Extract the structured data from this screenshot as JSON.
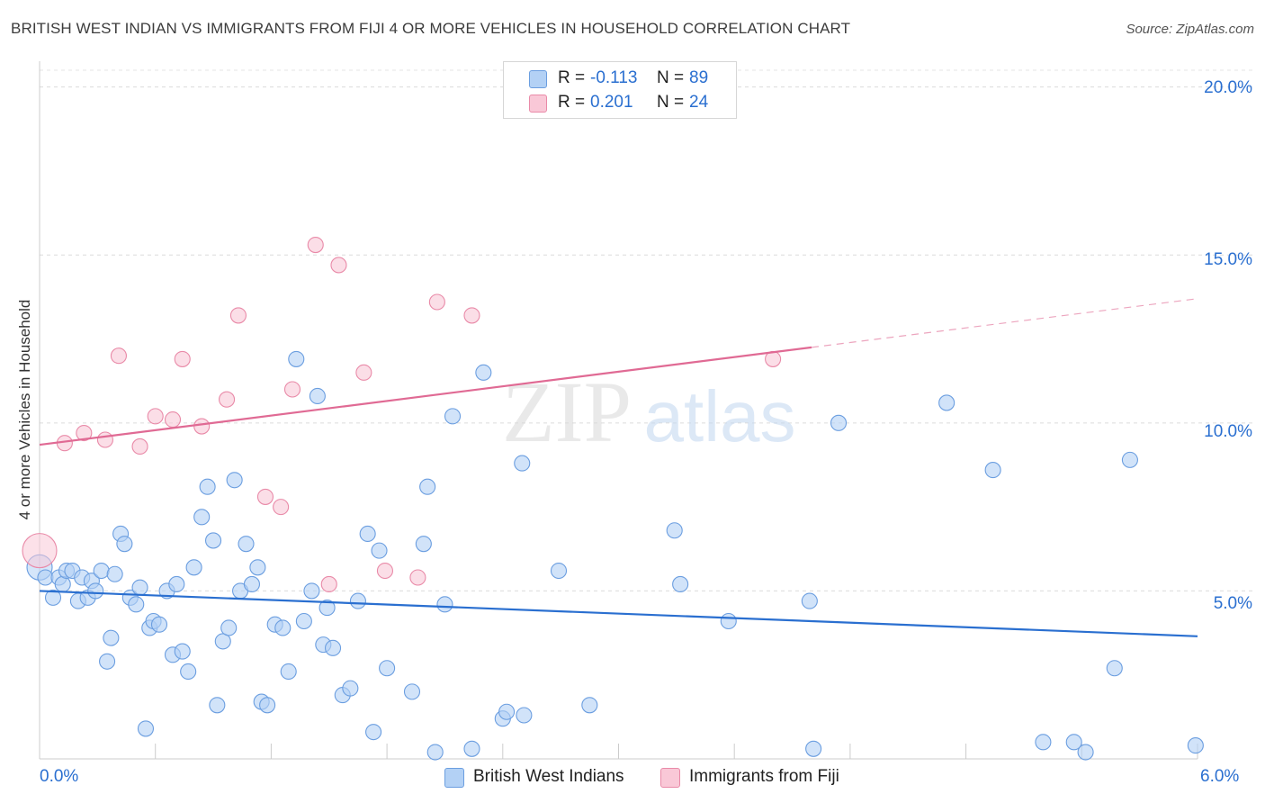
{
  "title": "BRITISH WEST INDIAN VS IMMIGRANTS FROM FIJI 4 OR MORE VEHICLES IN HOUSEHOLD CORRELATION CHART",
  "source": "Source: ZipAtlas.com",
  "watermark": {
    "zip": "ZIP",
    "atlas": "atlas"
  },
  "legend": [
    {
      "r_label": "R =",
      "r_value": "-0.113",
      "n_label": "N =",
      "n_value": "89",
      "color": "#b3d1f5",
      "border": "#6b9ee0"
    },
    {
      "r_label": "R =",
      "r_value": "0.201",
      "n_label": "N =",
      "n_value": "24",
      "color": "#f9c8d7",
      "border": "#e98aa8"
    }
  ],
  "bottom_legend": [
    {
      "label": "British West Indians",
      "color": "#b3d1f5",
      "border": "#6b9ee0"
    },
    {
      "label": "Immigrants from Fiji",
      "color": "#f9c8d7",
      "border": "#e98aa8"
    }
  ],
  "x_tick_labels": [
    "0.0%",
    "6.0%"
  ],
  "y_tick_labels": [
    "20.0%",
    "15.0%",
    "10.0%",
    "5.0%"
  ],
  "chart_data": {
    "type": "scatter",
    "title": "BRITISH WEST INDIAN VS IMMIGRANTS FROM FIJI 4 OR MORE VEHICLES IN HOUSEHOLD CORRELATION CHART",
    "xlabel": "",
    "ylabel": "4 or more Vehicles in Household",
    "xlim": [
      0,
      6.0
    ],
    "ylim": [
      0,
      20.5
    ],
    "y_ticks": [
      5,
      10,
      15,
      20
    ],
    "grid": true,
    "legend_position": "top-center",
    "series": [
      {
        "name": "British West Indians",
        "color": "#6b9ee0",
        "fill": "#b3d1f5",
        "trend": {
          "x0": 0,
          "y0": 5.0,
          "x1": 6.0,
          "y1": 3.65,
          "color": "#2a6fd0"
        },
        "points": [
          [
            0.0,
            5.7
          ],
          [
            0.03,
            5.4
          ],
          [
            0.07,
            4.8
          ],
          [
            0.1,
            5.4
          ],
          [
            0.12,
            5.2
          ],
          [
            0.14,
            5.6
          ],
          [
            0.17,
            5.6
          ],
          [
            0.2,
            4.7
          ],
          [
            0.22,
            5.4
          ],
          [
            0.25,
            4.8
          ],
          [
            0.27,
            5.3
          ],
          [
            0.29,
            5.0
          ],
          [
            0.32,
            5.6
          ],
          [
            0.35,
            2.9
          ],
          [
            0.37,
            3.6
          ],
          [
            0.39,
            5.5
          ],
          [
            0.42,
            6.7
          ],
          [
            0.44,
            6.4
          ],
          [
            0.47,
            4.8
          ],
          [
            0.5,
            4.6
          ],
          [
            0.52,
            5.1
          ],
          [
            0.55,
            0.9
          ],
          [
            0.57,
            3.9
          ],
          [
            0.59,
            4.1
          ],
          [
            0.62,
            4.0
          ],
          [
            0.66,
            5.0
          ],
          [
            0.69,
            3.1
          ],
          [
            0.71,
            5.2
          ],
          [
            0.74,
            3.2
          ],
          [
            0.77,
            2.6
          ],
          [
            0.8,
            5.7
          ],
          [
            0.84,
            7.2
          ],
          [
            0.87,
            8.1
          ],
          [
            0.9,
            6.5
          ],
          [
            0.92,
            1.6
          ],
          [
            0.95,
            3.5
          ],
          [
            0.98,
            3.9
          ],
          [
            1.01,
            8.3
          ],
          [
            1.04,
            5.0
          ],
          [
            1.07,
            6.4
          ],
          [
            1.1,
            5.2
          ],
          [
            1.13,
            5.7
          ],
          [
            1.15,
            1.7
          ],
          [
            1.18,
            1.6
          ],
          [
            1.22,
            4.0
          ],
          [
            1.26,
            3.9
          ],
          [
            1.29,
            2.6
          ],
          [
            1.33,
            11.9
          ],
          [
            1.37,
            4.1
          ],
          [
            1.41,
            5.0
          ],
          [
            1.44,
            10.8
          ],
          [
            1.47,
            3.4
          ],
          [
            1.49,
            4.5
          ],
          [
            1.52,
            3.3
          ],
          [
            1.57,
            1.9
          ],
          [
            1.61,
            2.1
          ],
          [
            1.65,
            4.7
          ],
          [
            1.7,
            6.7
          ],
          [
            1.73,
            0.8
          ],
          [
            1.76,
            6.2
          ],
          [
            1.8,
            2.7
          ],
          [
            1.93,
            2.0
          ],
          [
            1.99,
            6.4
          ],
          [
            2.01,
            8.1
          ],
          [
            2.05,
            0.2
          ],
          [
            2.1,
            4.6
          ],
          [
            2.14,
            10.2
          ],
          [
            2.24,
            0.3
          ],
          [
            2.3,
            11.5
          ],
          [
            2.4,
            1.2
          ],
          [
            2.42,
            1.4
          ],
          [
            2.5,
            8.8
          ],
          [
            2.51,
            1.3
          ],
          [
            2.69,
            5.6
          ],
          [
            2.85,
            1.6
          ],
          [
            3.29,
            6.8
          ],
          [
            3.32,
            5.2
          ],
          [
            3.57,
            4.1
          ],
          [
            3.99,
            4.7
          ],
          [
            4.01,
            0.3
          ],
          [
            4.14,
            10.0
          ],
          [
            4.7,
            10.6
          ],
          [
            4.94,
            8.6
          ],
          [
            5.2,
            0.5
          ],
          [
            5.36,
            0.5
          ],
          [
            5.42,
            0.2
          ],
          [
            5.57,
            2.7
          ],
          [
            5.65,
            8.9
          ],
          [
            5.99,
            0.4
          ]
        ]
      },
      {
        "name": "Immigrants from Fiji",
        "color": "#e98aa8",
        "fill": "#f9c8d7",
        "trend": {
          "x0": 0,
          "y0": 9.35,
          "x1": 6.0,
          "y1": 13.7,
          "solid_until_x": 4.0,
          "color": "#e06a94"
        },
        "points": [
          [
            0.0,
            6.2
          ],
          [
            0.13,
            9.4
          ],
          [
            0.23,
            9.7
          ],
          [
            0.34,
            9.5
          ],
          [
            0.41,
            12.0
          ],
          [
            0.52,
            9.3
          ],
          [
            0.6,
            10.2
          ],
          [
            0.69,
            10.1
          ],
          [
            0.74,
            11.9
          ],
          [
            0.84,
            9.9
          ],
          [
            0.97,
            10.7
          ],
          [
            1.03,
            13.2
          ],
          [
            1.17,
            7.8
          ],
          [
            1.25,
            7.5
          ],
          [
            1.31,
            11.0
          ],
          [
            1.43,
            15.3
          ],
          [
            1.5,
            5.2
          ],
          [
            1.55,
            14.7
          ],
          [
            1.68,
            11.5
          ],
          [
            1.79,
            5.6
          ],
          [
            1.96,
            5.4
          ],
          [
            2.06,
            13.6
          ],
          [
            2.24,
            13.2
          ],
          [
            3.8,
            11.9
          ]
        ]
      }
    ]
  }
}
